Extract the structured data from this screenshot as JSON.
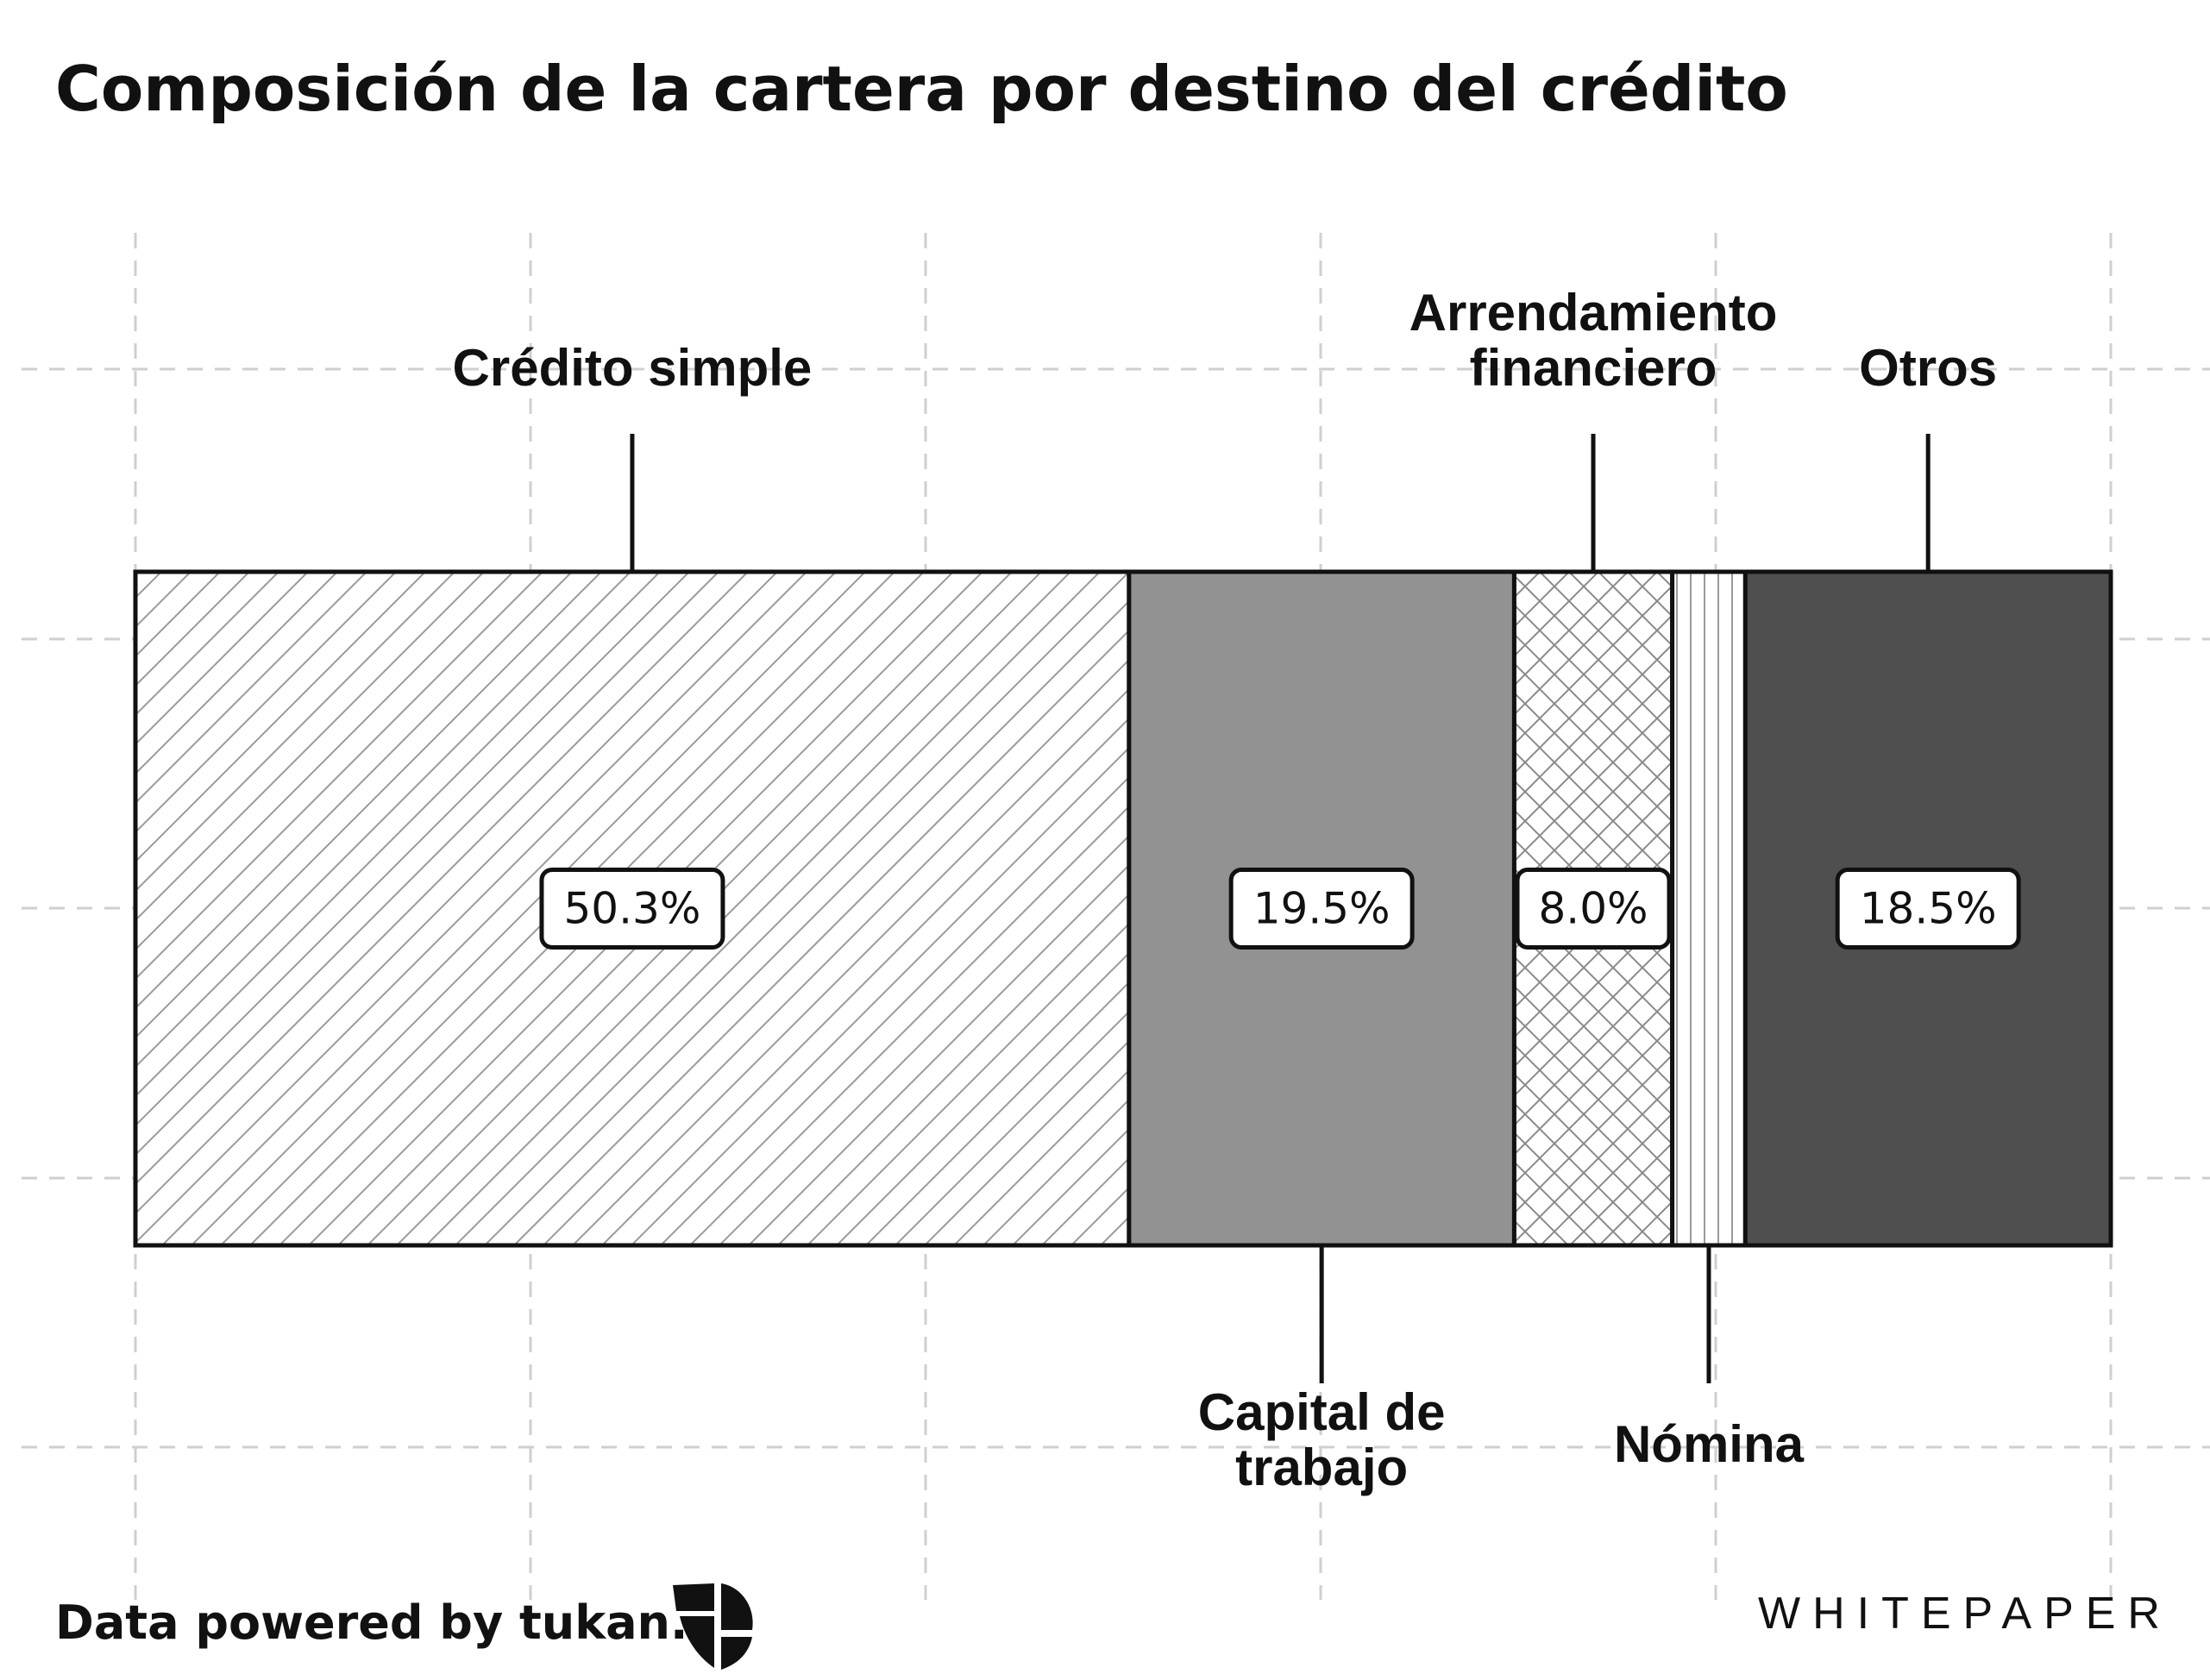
{
  "chart_data": {
    "type": "bar",
    "orientation": "horizontal-stacked",
    "title": "Composición de la cartera por destino del crédito",
    "xlim": [
      0,
      100
    ],
    "grid": true,
    "categories": [
      "Crédito simple",
      "Capital de trabajo",
      "Arrendamiento financiero",
      "Nómina",
      "Otros"
    ],
    "values": [
      50.3,
      19.5,
      8.0,
      3.7,
      18.5
    ],
    "value_labels": [
      "50.3%",
      "19.5%",
      "8.0%",
      "",
      "18.5%"
    ],
    "label_lines": [
      [
        "Crédito simple"
      ],
      [
        "Capital de",
        "trabajo"
      ],
      [
        "Arrendamiento",
        "financiero"
      ],
      [
        "Nómina"
      ],
      [
        "Otros"
      ]
    ],
    "label_positions": [
      "above",
      "below",
      "above",
      "below",
      "above"
    ],
    "fills": [
      "diagonal-hatch",
      "#929292",
      "cross-hatch",
      "vertical-lines",
      "#4f4f4f"
    ]
  },
  "footer": {
    "credit": "Data powered by tukan.",
    "brand": "WHITEPAPER",
    "logo_icon": "tukan-logo-icon"
  }
}
